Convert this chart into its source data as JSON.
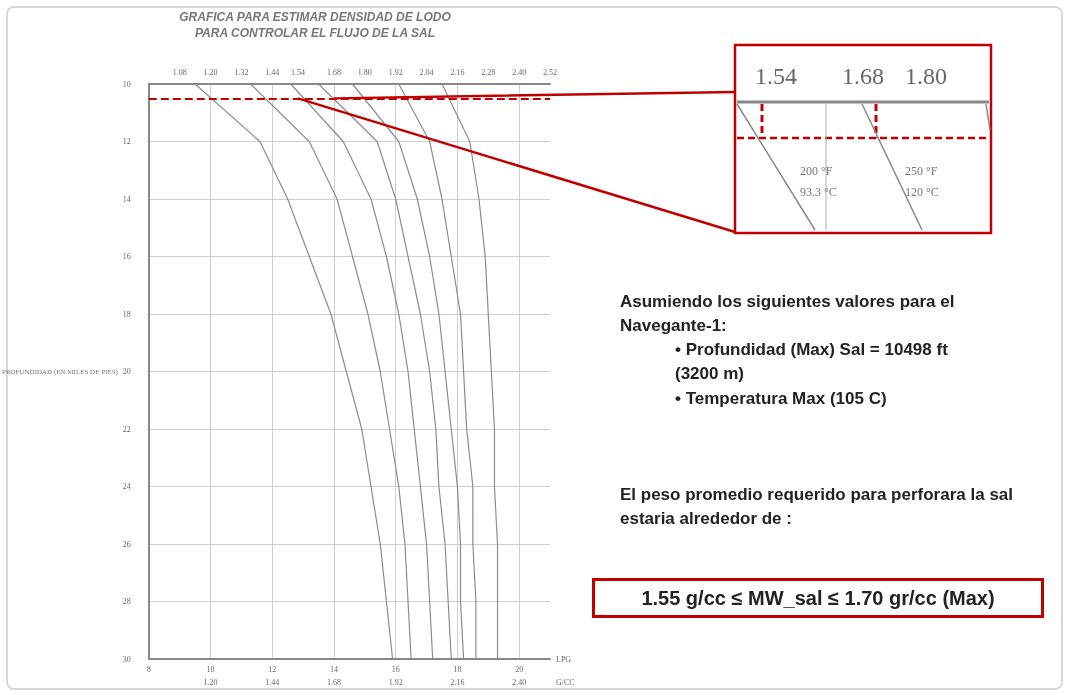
{
  "chart_data": {
    "type": "line",
    "title": "GRAFICA PARA ESTIMAR DENSIDAD DE LODO\nPARA CONTROLAR EL FLUJO DE LA SAL",
    "xlabel": "LPG",
    "x2label": "G/CC",
    "ylabel": "PROFUNDIDAD (EN MILES DE PIES)",
    "series": [
      {
        "color": "#8c8c8c",
        "x": [
          9.5,
          11.6,
          12.5,
          13.2,
          13.9,
          14.4,
          14.9,
          15.2,
          15.5,
          15.7,
          15.9
        ],
        "values": [
          10,
          12,
          14,
          16,
          18,
          20,
          22,
          24,
          26,
          28,
          30
        ]
      },
      {
        "color": "#8c8c8c",
        "x": [
          11.3,
          13.2,
          14.1,
          14.6,
          15.1,
          15.5,
          15.8,
          16.1,
          16.3,
          16.4,
          16.5
        ],
        "values": [
          10,
          12,
          14,
          16,
          18,
          20,
          22,
          24,
          26,
          28,
          30
        ]
      },
      {
        "color": "#8c8c8c",
        "x": [
          12.6,
          14.3,
          15.2,
          15.7,
          16.1,
          16.4,
          16.6,
          16.8,
          17.0,
          17.1,
          17.2
        ],
        "values": [
          10,
          12,
          14,
          16,
          18,
          20,
          22,
          24,
          26,
          28,
          30
        ]
      },
      {
        "color": "#8c8c8c",
        "x": [
          13.5,
          15.4,
          16.0,
          16.4,
          16.8,
          17.1,
          17.3,
          17.4,
          17.6,
          17.7,
          17.8
        ],
        "values": [
          10,
          12,
          14,
          16,
          18,
          20,
          22,
          24,
          26,
          28,
          30
        ]
      },
      {
        "color": "#8c8c8c",
        "x": [
          14.6,
          16.1,
          16.7,
          17.1,
          17.4,
          17.6,
          17.8,
          18.0,
          18.1,
          18.1,
          18.2
        ],
        "values": [
          10,
          12,
          14,
          16,
          18,
          20,
          22,
          24,
          26,
          28,
          30
        ]
      },
      {
        "color": "#8c8c8c",
        "x": [
          16.1,
          17.1,
          17.5,
          17.8,
          18.1,
          18.2,
          18.3,
          18.5,
          18.5,
          18.6,
          18.6
        ],
        "values": [
          10,
          12,
          14,
          16,
          18,
          20,
          22,
          24,
          26,
          28,
          30
        ]
      },
      {
        "color": "#8c8c8c",
        "x": [
          17.5,
          18.4,
          18.7,
          18.9,
          19.0,
          19.1,
          19.2,
          19.2,
          19.3,
          19.3,
          19.3
        ],
        "values": [
          10,
          12,
          14,
          16,
          18,
          20,
          22,
          24,
          26,
          28,
          30
        ]
      }
    ],
    "xlim": [
      8,
      21
    ],
    "xticks": [
      8,
      10,
      12,
      14,
      16,
      18,
      20
    ],
    "x2lim": [
      0.96,
      2.52
    ],
    "x2ticks": [
      {
        "value": 1.08,
        "label": "1.08"
      },
      {
        "value": 1.2,
        "label": "1.20"
      },
      {
        "value": 1.32,
        "label": "1.32"
      },
      {
        "value": 1.44,
        "label": "1.44"
      },
      {
        "value": 1.54,
        "label": "1.54"
      },
      {
        "value": 1.68,
        "label": "1.68"
      },
      {
        "value": 1.8,
        "label": "1.80"
      },
      {
        "value": 1.92,
        "label": "1.92"
      },
      {
        "value": 2.04,
        "label": "2.04"
      },
      {
        "value": 2.16,
        "label": "2.16"
      },
      {
        "value": 2.28,
        "label": "2.28"
      },
      {
        "value": 2.4,
        "label": "2.40"
      },
      {
        "value": 2.52,
        "label": "2.52"
      }
    ],
    "ylim": [
      30,
      10
    ],
    "yticks": [
      10,
      12,
      14,
      16,
      18,
      20,
      22,
      24,
      26,
      28,
      30
    ],
    "grid": true,
    "marker": "none",
    "line_style": "solid",
    "ref_lines": [
      {
        "axis": "y",
        "value": 10.5,
        "color": "#c00000",
        "line_style": "dashed"
      }
    ],
    "annotations": [
      "1.54",
      "1.68",
      "1.80",
      "200 °F",
      "93.3 °C",
      "250 °F",
      "120 °C",
      "Asumiendo los siguientes valores para el Navegante-1:",
      "• Profundidad (Max) Sal = 10498 ft (3200 m)",
      "• Temperatura Max (105 C)",
      "El peso promedio requerido para perforara la sal estaria alrededor de :",
      "1.55 g/cc ≤ MW_sal ≤ 1.70 gr/cc (Max)"
    ]
  }
}
